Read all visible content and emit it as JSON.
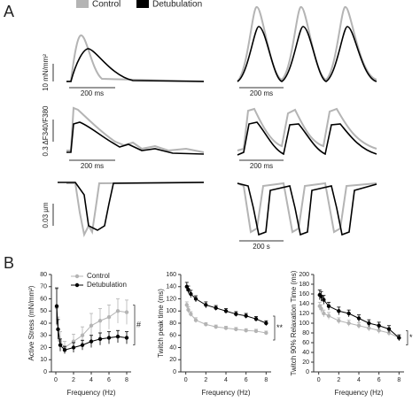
{
  "panel_a": {
    "label": "A",
    "legend": [
      "Control",
      "Detubulation"
    ],
    "scale_labels": [
      "10 mN/mm²",
      "200 ms",
      "200 ms",
      "0.3 ΔF340/F380",
      "200 ms",
      "200 ms",
      "0.03 µm",
      "200 s"
    ]
  },
  "panel_b_label": "B",
  "chart_data": [
    {
      "type": "line",
      "ylabel": "Active Stress (mN/mm²)",
      "xlabel": "Frequency (Hz)",
      "x": [
        0.1,
        0.25,
        0.5,
        1,
        2,
        3,
        4,
        5,
        6,
        7,
        8
      ],
      "xlim": [
        -0.5,
        8.5
      ],
      "xticks": [
        0,
        2,
        4,
        6,
        8
      ],
      "ylim": [
        0,
        80
      ],
      "yticks": [
        0,
        10,
        20,
        30,
        40,
        50,
        60,
        70,
        80
      ],
      "legend": "upper left",
      "annotation": "#",
      "series": [
        {
          "name": "Control",
          "color": "#b4b4b4",
          "values": [
            53,
            35,
            25,
            20,
            25,
            30,
            38,
            42,
            45,
            50,
            49
          ],
          "errors": [
            15,
            10,
            8,
            5,
            6,
            7,
            10,
            10,
            10,
            10,
            10
          ]
        },
        {
          "name": "Detubulation",
          "color": "#000000",
          "values": [
            54,
            35,
            22,
            18,
            20,
            22,
            25,
            27,
            28,
            29,
            28
          ],
          "errors": [
            15,
            8,
            5,
            3,
            4,
            4,
            5,
            5,
            5,
            5,
            5
          ]
        }
      ]
    },
    {
      "type": "line",
      "ylabel": "Twitch peak time (ms)",
      "xlabel": "Frequency (Hz)",
      "x": [
        0.1,
        0.25,
        0.5,
        1,
        2,
        3,
        4,
        5,
        6,
        7,
        8
      ],
      "xlim": [
        -0.5,
        8.5
      ],
      "xticks": [
        0,
        2,
        4,
        6,
        8
      ],
      "ylim": [
        0,
        160
      ],
      "yticks": [
        0,
        20,
        40,
        60,
        80,
        100,
        120,
        140,
        160
      ],
      "annotation": "**",
      "series": [
        {
          "color": "#b4b4b4",
          "values": [
            110,
            102,
            95,
            85,
            78,
            74,
            72,
            70,
            68,
            67,
            64
          ],
          "errors": [
            5,
            5,
            4,
            4,
            3,
            3,
            3,
            3,
            3,
            3,
            3
          ]
        },
        {
          "color": "#000000",
          "values": [
            140,
            135,
            128,
            120,
            110,
            105,
            100,
            95,
            92,
            87,
            80
          ],
          "errors": [
            7,
            6,
            6,
            5,
            5,
            4,
            4,
            4,
            4,
            4,
            4
          ]
        }
      ]
    },
    {
      "type": "line",
      "ylabel": "Twitch 90% Relaxation Time (ms)",
      "xlabel": "Frequency (Hz)",
      "x": [
        0.1,
        0.25,
        0.5,
        1,
        2,
        3,
        4,
        5,
        6,
        7,
        8
      ],
      "xlim": [
        -0.5,
        8.5
      ],
      "xticks": [
        0,
        2,
        4,
        6,
        8
      ],
      "ylim": [
        0,
        200
      ],
      "yticks": [
        0,
        20,
        40,
        60,
        80,
        100,
        120,
        140,
        160,
        180,
        200
      ],
      "annotation": "*",
      "series": [
        {
          "color": "#b4b4b4",
          "values": [
            135,
            130,
            120,
            115,
            105,
            100,
            95,
            90,
            85,
            80,
            70
          ],
          "errors": [
            8,
            8,
            7,
            7,
            6,
            6,
            6,
            6,
            6,
            6,
            6
          ]
        },
        {
          "color": "#000000",
          "values": [
            158,
            155,
            148,
            135,
            125,
            120,
            110,
            100,
            95,
            88,
            70
          ],
          "errors": [
            10,
            10,
            9,
            8,
            8,
            7,
            7,
            7,
            7,
            7,
            6
          ]
        }
      ]
    }
  ]
}
